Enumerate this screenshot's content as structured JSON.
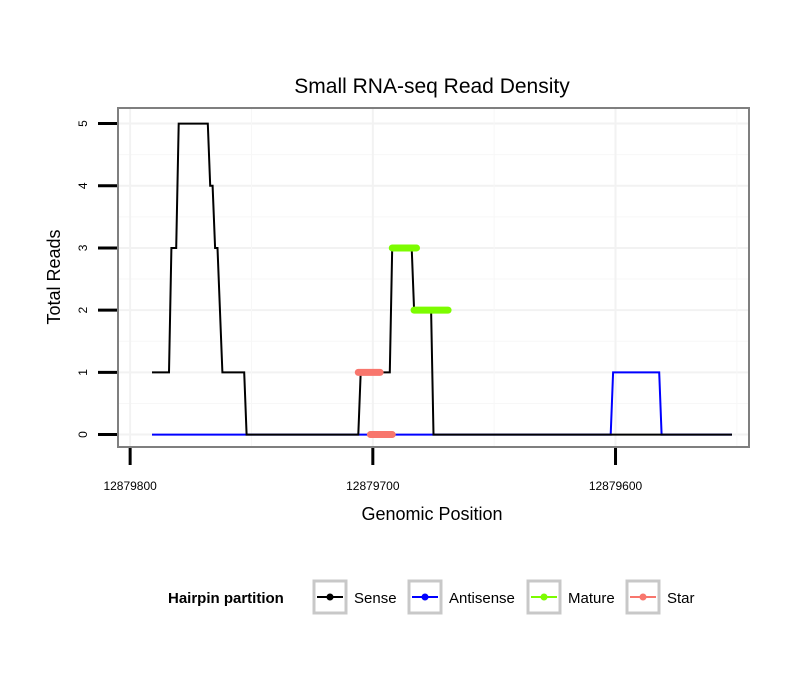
{
  "chart_data": {
    "type": "line",
    "title": "Small RNA-seq Read Density",
    "xlabel": "Genomic Position",
    "ylabel": "Total Reads",
    "xlim": [
      12879805,
      12879545
    ],
    "ylim": [
      -0.2,
      5.25
    ],
    "x_reversed": true,
    "x_ticks": [
      12879800,
      12879700,
      12879600
    ],
    "x_tick_labels": [
      "12879800",
      "12879700",
      "12879600"
    ],
    "y_ticks": [
      0,
      1,
      2,
      3,
      4,
      5
    ],
    "y_tick_labels": [
      "0",
      "1",
      "2",
      "3",
      "4",
      "5"
    ],
    "grid": true,
    "legend": {
      "title": "Hairpin partition",
      "position": "bottom",
      "entries": [
        {
          "name": "Sense",
          "color": "#000000"
        },
        {
          "name": "Antisense",
          "color": "#0000ff"
        },
        {
          "name": "Mature",
          "color": "#7cfc00"
        },
        {
          "name": "Star",
          "color": "#f8766d"
        }
      ]
    },
    "series": [
      {
        "name": "Sense",
        "color": "#000000",
        "style": "line",
        "points": [
          [
            12879791,
            1
          ],
          [
            12879784,
            1
          ],
          [
            12879783,
            3
          ],
          [
            12879781,
            3
          ],
          [
            12879780,
            5
          ],
          [
            12879768,
            5
          ],
          [
            12879767,
            4
          ],
          [
            12879766,
            4
          ],
          [
            12879765,
            3
          ],
          [
            12879764,
            3
          ],
          [
            12879762,
            1
          ],
          [
            12879753,
            1
          ],
          [
            12879752,
            0
          ],
          [
            12879706,
            0
          ],
          [
            12879705,
            1
          ],
          [
            12879693,
            1
          ],
          [
            12879692,
            3
          ],
          [
            12879684,
            3
          ],
          [
            12879683,
            2
          ],
          [
            12879676,
            2
          ],
          [
            12879675,
            0
          ],
          [
            12879552,
            0
          ]
        ]
      },
      {
        "name": "Antisense",
        "color": "#0000ff",
        "style": "line",
        "points": [
          [
            12879791,
            0
          ],
          [
            12879602,
            0
          ],
          [
            12879601,
            1
          ],
          [
            12879582,
            1
          ],
          [
            12879581,
            0
          ],
          [
            12879552,
            0
          ]
        ]
      },
      {
        "name": "Mature",
        "color": "#7cfc00",
        "style": "segments",
        "segments": [
          {
            "from": 12879692,
            "to": 12879682,
            "value": 3
          },
          {
            "from": 12879683,
            "to": 12879669,
            "value": 2
          }
        ]
      },
      {
        "name": "Star",
        "color": "#f8766d",
        "style": "segments",
        "segments": [
          {
            "from": 12879701,
            "to": 12879692,
            "value": 0
          },
          {
            "from": 12879706,
            "to": 12879697,
            "value": 1
          }
        ]
      }
    ]
  }
}
